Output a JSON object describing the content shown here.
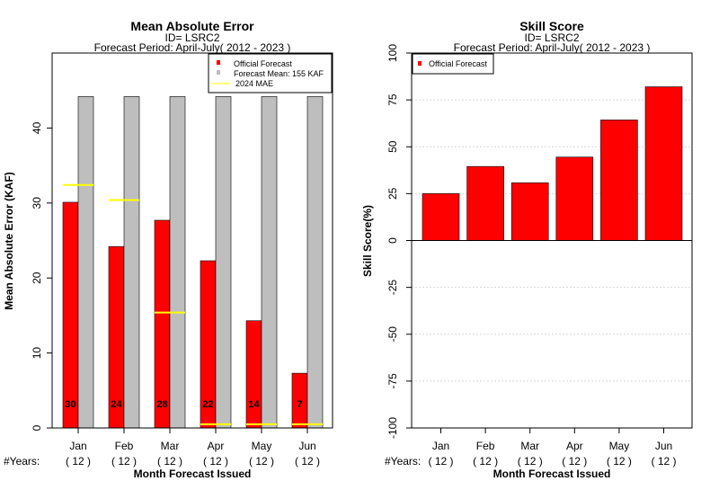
{
  "colors": {
    "official": "#ff0000",
    "forecast_mean": "#bebebe",
    "mae_2024": "#ffff00",
    "grid": "#d9d9d9"
  },
  "x_axis": {
    "months": [
      "Jan",
      "Feb",
      "Mar",
      "Apr",
      "May",
      "Jun"
    ],
    "years_prefix": "#Years:",
    "years": [
      "( 12 )",
      "( 12 )",
      "( 12 )",
      "( 12 )",
      "( 12 )",
      "( 12 )"
    ]
  },
  "chart_data": [
    {
      "type": "bar",
      "title": "Mean Absolute Error",
      "subtitle_id": "ID= LSRC2",
      "subtitle_period": "Forecast Period: April-July( 2012 - 2023 )",
      "xlabel": "Month Forecast Issued",
      "ylabel": "Mean Absolute Error (KAF)",
      "ylim": [
        0,
        50
      ],
      "yticks": [
        0,
        10,
        20,
        30,
        40
      ],
      "grid": false,
      "legend_position": "top-right",
      "legend": [
        "Official Forecast",
        "Forecast Mean: 155 KAF",
        "2024  MAE"
      ],
      "categories": [
        "Jan",
        "Feb",
        "Mar",
        "Apr",
        "May",
        "Jun"
      ],
      "series": [
        {
          "name": "Official Forecast",
          "values": [
            30.1,
            24.2,
            27.7,
            22.3,
            14.3,
            7.3
          ]
        },
        {
          "name": "Forecast Mean: 155 KAF",
          "values": [
            44.2,
            44.2,
            44.2,
            44.2,
            44.2,
            44.2
          ]
        },
        {
          "name": "2024  MAE",
          "values": [
            32.4,
            30.4,
            15.4,
            0.5,
            0.5,
            0.5
          ]
        }
      ],
      "data_labels": [
        "30",
        "24",
        "28",
        "22",
        "14",
        "7"
      ]
    },
    {
      "type": "bar",
      "title": "Skill Score",
      "subtitle_id": "ID= LSRC2",
      "subtitle_period": "Forecast Period: April-July( 2012 - 2023 )",
      "xlabel": "Month Forecast Issued",
      "ylabel": "Skill Score(%)",
      "ylim": [
        -100,
        100
      ],
      "yticks": [
        -100,
        -75,
        -50,
        -25,
        0,
        25,
        50,
        75,
        100
      ],
      "grid": true,
      "legend_position": "top-left",
      "legend": [
        "Official Forecast"
      ],
      "categories": [
        "Jan",
        "Feb",
        "Mar",
        "Apr",
        "May",
        "Jun"
      ],
      "series": [
        {
          "name": "Official Forecast",
          "values": [
            25,
            39.5,
            30.8,
            44.5,
            64.3,
            82
          ]
        }
      ]
    }
  ]
}
